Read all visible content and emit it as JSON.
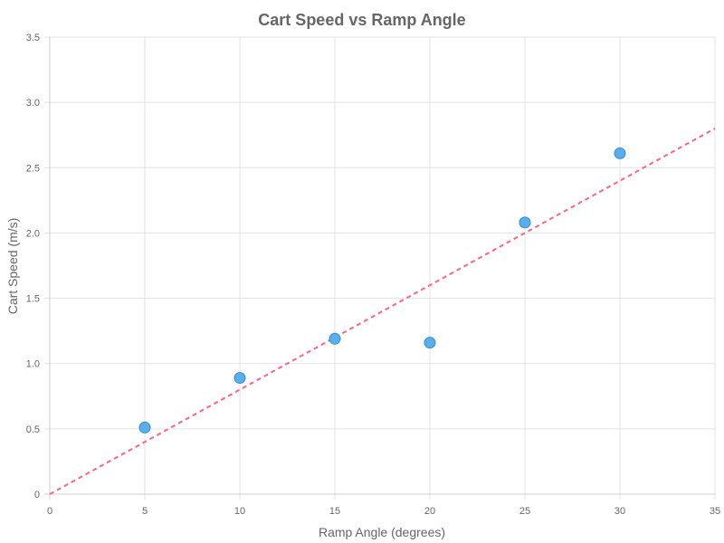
{
  "chart_data": {
    "type": "scatter",
    "title": "Cart Speed vs Ramp Angle",
    "xlabel": "Ramp Angle (degrees)",
    "ylabel": "Cart Speed (m/s)",
    "xlim": [
      0,
      35
    ],
    "ylim": [
      0,
      3.5
    ],
    "x_ticks": [
      0,
      5,
      10,
      15,
      20,
      25,
      30,
      35
    ],
    "y_ticks": [
      0,
      0.5,
      1.0,
      1.5,
      2.0,
      2.5,
      3.0,
      3.5
    ],
    "x_tick_labels": [
      "0",
      "5",
      "10",
      "15",
      "20",
      "25",
      "30",
      "35"
    ],
    "y_tick_labels": [
      "0",
      "0.5",
      "1.0",
      "1.5",
      "2.0",
      "2.5",
      "3.0",
      "3.5"
    ],
    "grid": true,
    "legend": "none",
    "series": [
      {
        "type": "scatter",
        "color": "#5aafea",
        "points": [
          {
            "x": 5,
            "y": 0.51
          },
          {
            "x": 10,
            "y": 0.89
          },
          {
            "x": 15,
            "y": 1.19
          },
          {
            "x": 20,
            "y": 1.16
          },
          {
            "x": 25,
            "y": 2.08
          },
          {
            "x": 30,
            "y": 2.61
          }
        ]
      },
      {
        "type": "line",
        "style": "dashed",
        "color": "#ff6384",
        "points": [
          {
            "x": 0,
            "y": 0
          },
          {
            "x": 35,
            "y": 2.8
          }
        ]
      }
    ]
  }
}
